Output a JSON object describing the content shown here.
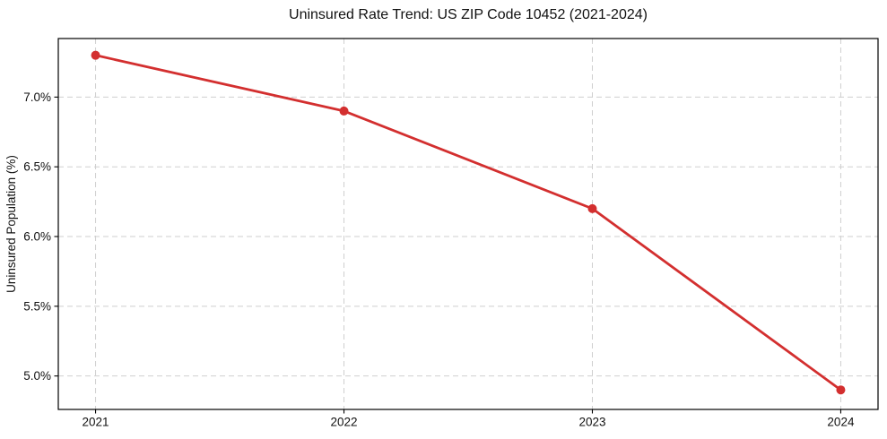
{
  "chart": {
    "title": "Uninsured Rate Trend: US ZIP Code 10452 (2021-2024)",
    "ylabel": "Uninsured Population (%)"
  },
  "chart_data": {
    "type": "line",
    "title": "Uninsured Rate Trend: US ZIP Code 10452 (2021-2024)",
    "xlabel": "",
    "ylabel": "Uninsured Population (%)",
    "x": [
      2021,
      2022,
      2023,
      2024
    ],
    "values": [
      7.3,
      6.9,
      6.2,
      4.9
    ],
    "x_tick_labels": [
      "2021",
      "2022",
      "2023",
      "2024"
    ],
    "y_ticks": [
      5.0,
      5.5,
      6.0,
      6.5,
      7.0
    ],
    "y_tick_labels": [
      "5.0%",
      "5.5%",
      "6.0%",
      "6.5%",
      "7.0%"
    ],
    "xlim": [
      2020.85,
      2024.15
    ],
    "ylim": [
      4.76,
      7.42
    ],
    "grid": true,
    "grid_style": "dashed",
    "grid_color": "#cfcfcf",
    "legend": false,
    "line_color": "#d32f2f",
    "marker": "circle",
    "spine_color": "#000000"
  }
}
